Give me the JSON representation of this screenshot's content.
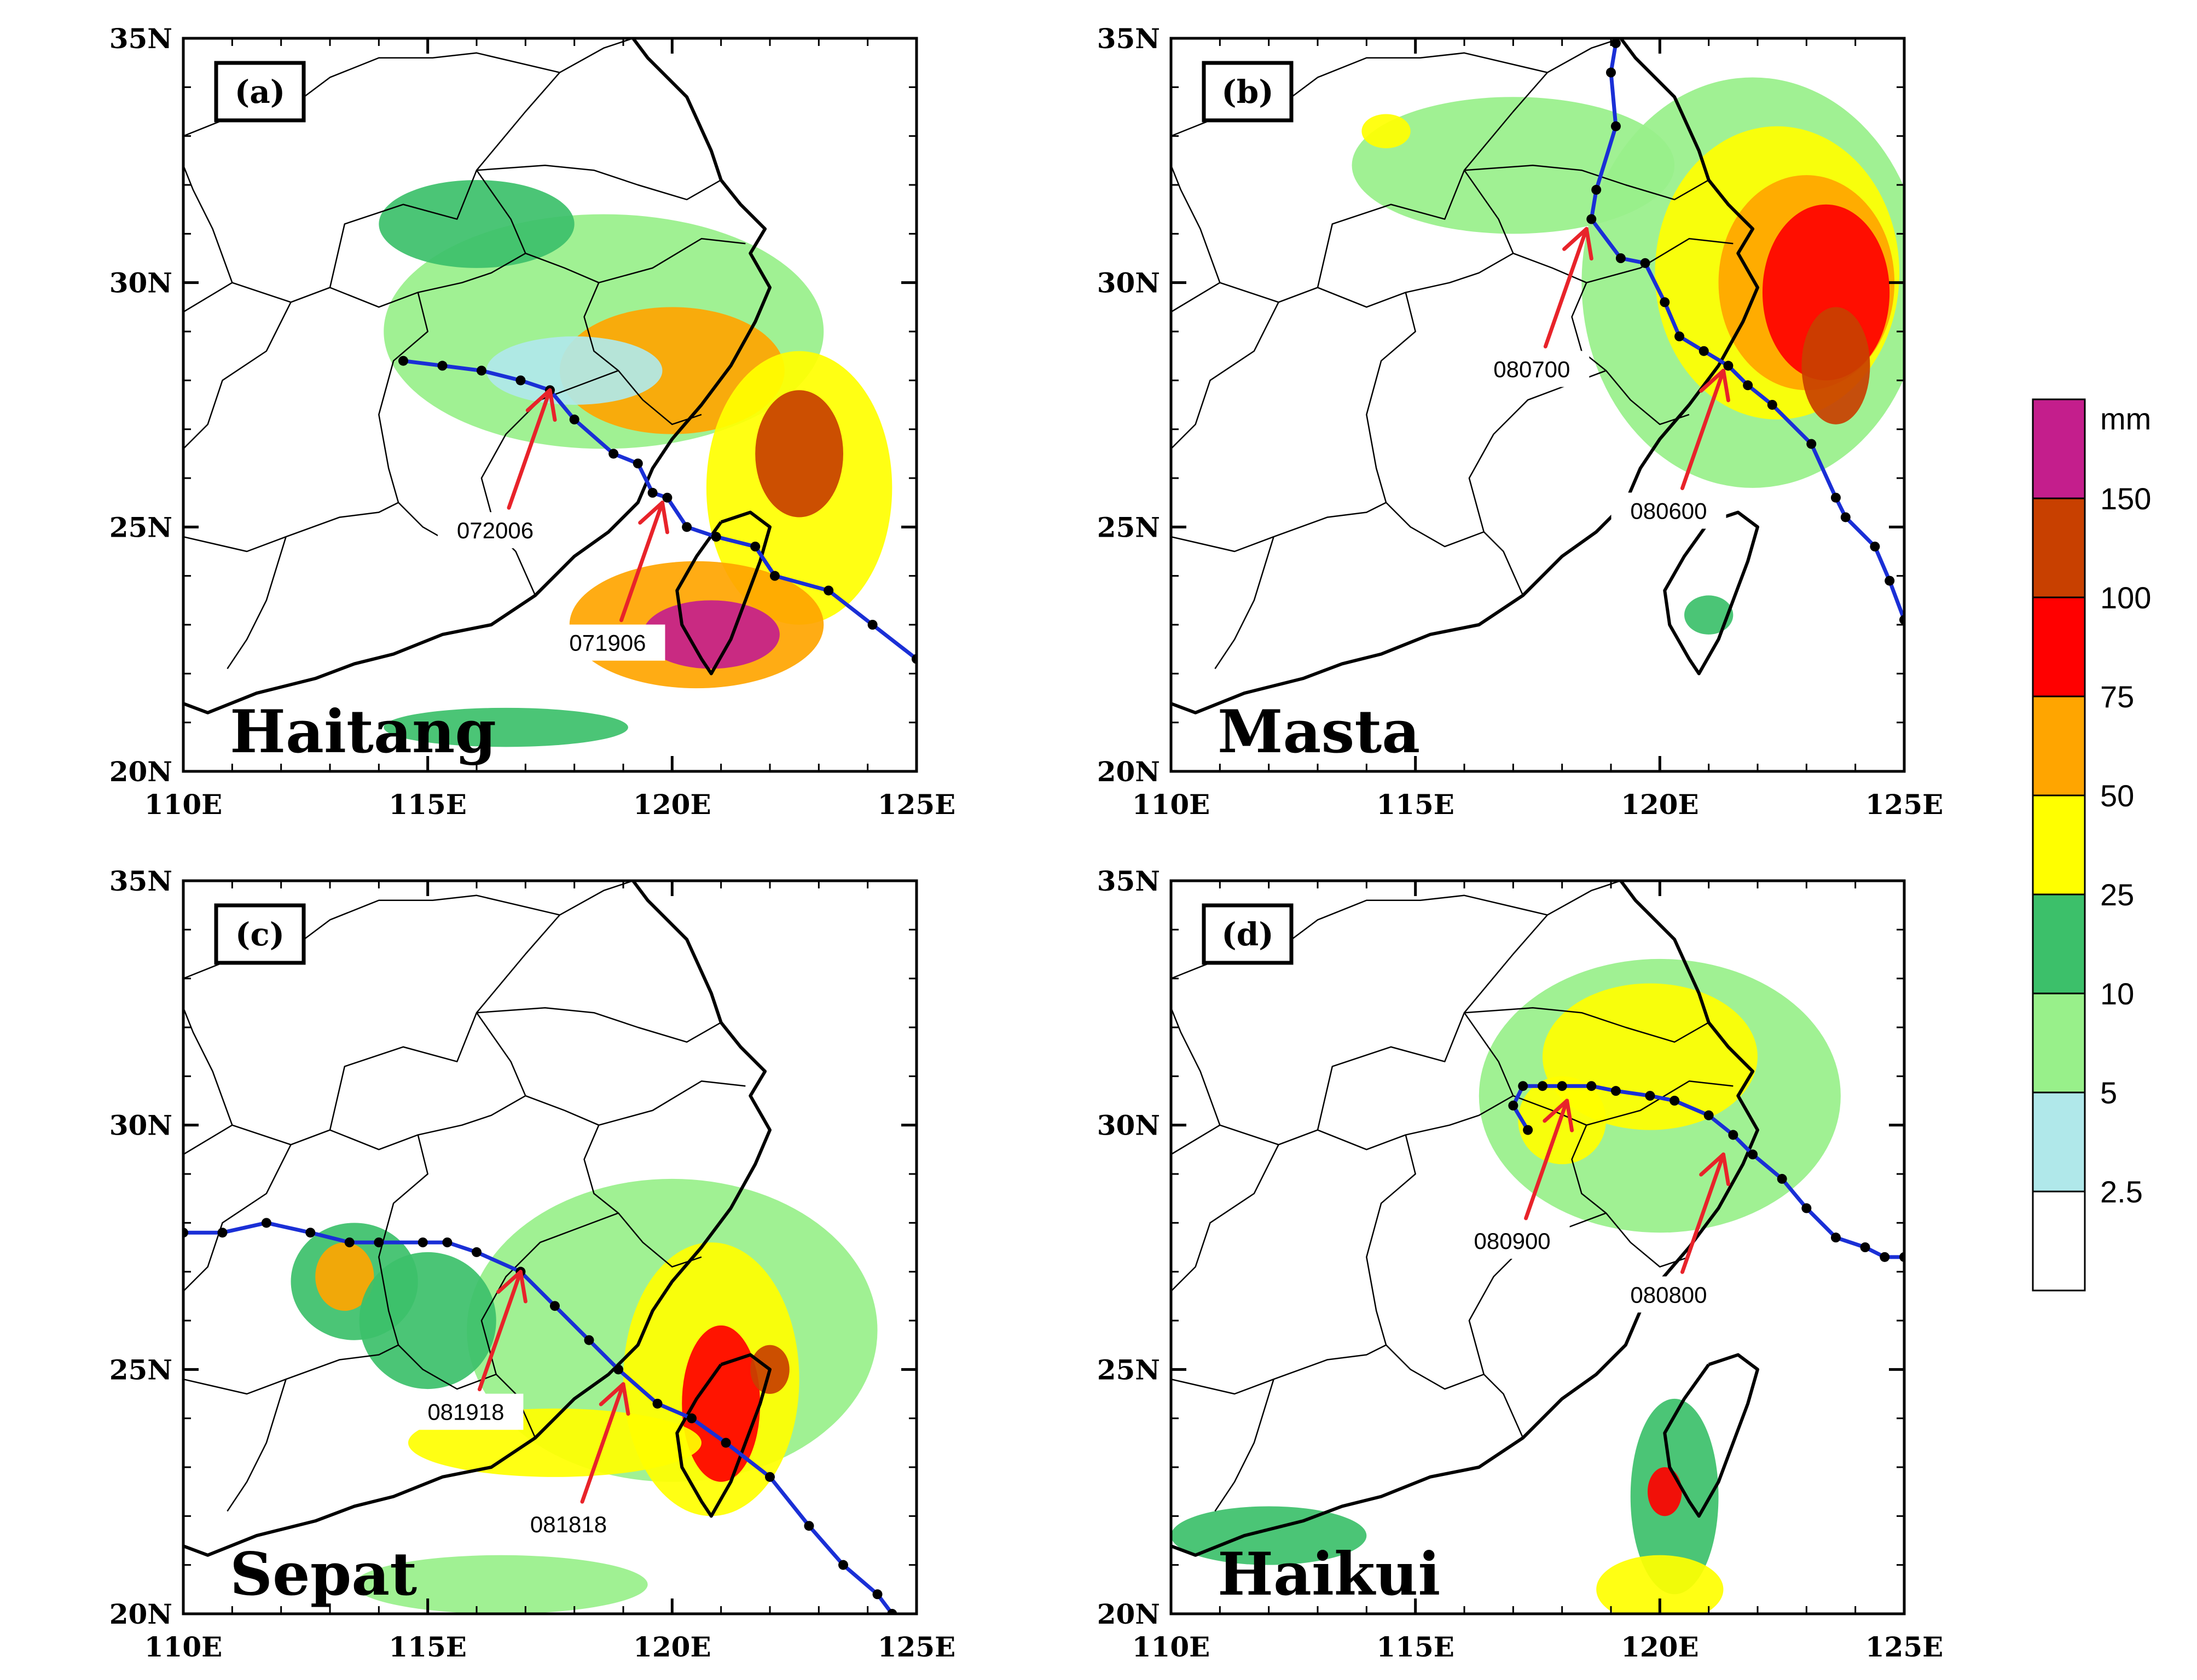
{
  "figure": {
    "x_axis": {
      "ticks": [
        "110E",
        "115E",
        "120E",
        "125E"
      ],
      "range_deg": [
        110,
        125
      ]
    },
    "y_axis": {
      "ticks": [
        "20N",
        "25N",
        "30N",
        "35N"
      ],
      "range_deg": [
        20,
        35
      ]
    }
  },
  "panels": [
    {
      "tag": "(a)",
      "storm": "Haitang",
      "track": [
        [
          114.5,
          28.4
        ],
        [
          115.3,
          28.3
        ],
        [
          116.1,
          28.2
        ],
        [
          116.9,
          28.0
        ],
        [
          117.5,
          27.8
        ],
        [
          118.0,
          27.2
        ],
        [
          118.8,
          26.5
        ],
        [
          119.3,
          26.3
        ],
        [
          119.6,
          25.7
        ],
        [
          119.9,
          25.6
        ],
        [
          120.3,
          25.0
        ],
        [
          120.9,
          24.8
        ],
        [
          121.7,
          24.6
        ],
        [
          122.1,
          24.0
        ],
        [
          123.2,
          23.7
        ],
        [
          124.1,
          23.0
        ],
        [
          125.0,
          22.3
        ]
      ],
      "labels": [
        {
          "text": "072006",
          "lon": 117.5,
          "lat": 27.8
        },
        {
          "text": "071906",
          "lon": 119.8,
          "lat": 25.5
        }
      ],
      "rain": [
        {
          "lon": 118.6,
          "lat": 29.0,
          "rx": 4.5,
          "ry": 2.4,
          "level": 2
        },
        {
          "lon": 116.0,
          "lat": 31.2,
          "rx": 2.0,
          "ry": 0.9,
          "level": 3
        },
        {
          "lon": 120.0,
          "lat": 28.2,
          "rx": 2.3,
          "ry": 1.3,
          "level": 5
        },
        {
          "lon": 122.6,
          "lat": 25.8,
          "rx": 1.9,
          "ry": 2.8,
          "level": 4
        },
        {
          "lon": 122.6,
          "lat": 26.5,
          "rx": 0.9,
          "ry": 1.3,
          "level": 7
        },
        {
          "lon": 120.5,
          "lat": 23.0,
          "rx": 2.6,
          "ry": 1.3,
          "level": 5
        },
        {
          "lon": 120.8,
          "lat": 22.8,
          "rx": 1.4,
          "ry": 0.7,
          "level": 8
        },
        {
          "lon": 116.6,
          "lat": 20.9,
          "rx": 2.5,
          "ry": 0.4,
          "level": 3
        },
        {
          "lon": 118.0,
          "lat": 28.2,
          "rx": 1.8,
          "ry": 0.7,
          "level": 1
        }
      ]
    },
    {
      "tag": "(b)",
      "storm": "Masta",
      "track": [
        [
          119.1,
          34.9
        ],
        [
          119.0,
          34.3
        ],
        [
          119.1,
          33.2
        ],
        [
          118.7,
          31.9
        ],
        [
          118.6,
          31.3
        ],
        [
          119.2,
          30.5
        ],
        [
          119.7,
          30.4
        ],
        [
          120.1,
          29.6
        ],
        [
          120.4,
          28.9
        ],
        [
          120.9,
          28.6
        ],
        [
          121.4,
          28.3
        ],
        [
          121.8,
          27.9
        ],
        [
          122.3,
          27.5
        ],
        [
          123.1,
          26.7
        ],
        [
          123.6,
          25.6
        ],
        [
          123.8,
          25.2
        ],
        [
          124.4,
          24.6
        ],
        [
          124.7,
          23.9
        ],
        [
          125.0,
          23.1
        ]
      ],
      "labels": [
        {
          "text": "080700",
          "lon": 118.5,
          "lat": 31.1
        },
        {
          "text": "080600",
          "lon": 121.3,
          "lat": 28.2
        }
      ],
      "rain": [
        {
          "lon": 121.9,
          "lat": 30.0,
          "rx": 3.5,
          "ry": 4.2,
          "level": 2
        },
        {
          "lon": 117.0,
          "lat": 32.4,
          "rx": 3.3,
          "ry": 1.4,
          "level": 2
        },
        {
          "lon": 122.4,
          "lat": 30.2,
          "rx": 2.5,
          "ry": 3.0,
          "level": 4
        },
        {
          "lon": 123.0,
          "lat": 30.0,
          "rx": 1.8,
          "ry": 2.2,
          "level": 5
        },
        {
          "lon": 123.4,
          "lat": 29.8,
          "rx": 1.3,
          "ry": 1.8,
          "level": 6
        },
        {
          "lon": 123.6,
          "lat": 28.3,
          "rx": 0.7,
          "ry": 1.2,
          "level": 7
        },
        {
          "lon": 114.4,
          "lat": 33.1,
          "rx": 0.5,
          "ry": 0.35,
          "level": 4
        },
        {
          "lon": 121.0,
          "lat": 23.2,
          "rx": 0.5,
          "ry": 0.4,
          "level": 3
        }
      ]
    },
    {
      "tag": "(c)",
      "storm": "Sepat",
      "track": [
        [
          110.0,
          27.8
        ],
        [
          110.8,
          27.8
        ],
        [
          111.7,
          28.0
        ],
        [
          112.6,
          27.8
        ],
        [
          113.4,
          27.6
        ],
        [
          114.0,
          27.6
        ],
        [
          114.9,
          27.6
        ],
        [
          115.4,
          27.6
        ],
        [
          116.0,
          27.4
        ],
        [
          116.9,
          27.0
        ],
        [
          117.6,
          26.3
        ],
        [
          118.3,
          25.6
        ],
        [
          118.9,
          25.0
        ],
        [
          119.7,
          24.3
        ],
        [
          120.4,
          24.0
        ],
        [
          121.1,
          23.5
        ],
        [
          122.0,
          22.8
        ],
        [
          122.8,
          21.8
        ],
        [
          123.5,
          21.0
        ],
        [
          124.2,
          20.4
        ],
        [
          124.5,
          20.0
        ]
      ],
      "labels": [
        {
          "text": "081918",
          "lon": 116.9,
          "lat": 27.0
        },
        {
          "text": "081818",
          "lon": 119.0,
          "lat": 24.7
        }
      ],
      "rain": [
        {
          "lon": 120.0,
          "lat": 25.8,
          "rx": 4.2,
          "ry": 3.1,
          "level": 2
        },
        {
          "lon": 113.5,
          "lat": 26.8,
          "rx": 1.3,
          "ry": 1.2,
          "level": 3
        },
        {
          "lon": 113.3,
          "lat": 26.9,
          "rx": 0.6,
          "ry": 0.7,
          "level": 5
        },
        {
          "lon": 115.0,
          "lat": 26.0,
          "rx": 1.4,
          "ry": 1.4,
          "level": 3
        },
        {
          "lon": 120.8,
          "lat": 24.8,
          "rx": 1.8,
          "ry": 2.8,
          "level": 4
        },
        {
          "lon": 121.0,
          "lat": 24.3,
          "rx": 0.8,
          "ry": 1.6,
          "level": 6
        },
        {
          "lon": 117.6,
          "lat": 23.5,
          "rx": 3.0,
          "ry": 0.7,
          "level": 4
        },
        {
          "lon": 122.0,
          "lat": 25.0,
          "rx": 0.4,
          "ry": 0.5,
          "level": 7
        },
        {
          "lon": 116.5,
          "lat": 20.6,
          "rx": 3.0,
          "ry": 0.6,
          "level": 2
        }
      ]
    },
    {
      "tag": "(d)",
      "storm": "Haikui",
      "track": [
        [
          117.3,
          29.9
        ],
        [
          117.0,
          30.4
        ],
        [
          117.2,
          30.8
        ],
        [
          117.6,
          30.8
        ],
        [
          118.0,
          30.8
        ],
        [
          118.6,
          30.8
        ],
        [
          119.1,
          30.7
        ],
        [
          119.8,
          30.6
        ],
        [
          120.3,
          30.5
        ],
        [
          121.0,
          30.2
        ],
        [
          121.5,
          29.8
        ],
        [
          121.9,
          29.4
        ],
        [
          122.5,
          28.9
        ],
        [
          123.0,
          28.3
        ],
        [
          123.6,
          27.7
        ],
        [
          124.2,
          27.5
        ],
        [
          124.6,
          27.3
        ],
        [
          125.0,
          27.3
        ]
      ],
      "labels": [
        {
          "text": "080900",
          "lon": 118.1,
          "lat": 30.5
        },
        {
          "text": "080800",
          "lon": 121.3,
          "lat": 29.4
        }
      ],
      "rain": [
        {
          "lon": 120.0,
          "lat": 30.6,
          "rx": 3.7,
          "ry": 2.8,
          "level": 2
        },
        {
          "lon": 119.8,
          "lat": 31.4,
          "rx": 2.2,
          "ry": 1.5,
          "level": 4
        },
        {
          "lon": 118.0,
          "lat": 30.1,
          "rx": 0.9,
          "ry": 0.9,
          "level": 4
        },
        {
          "lon": 120.3,
          "lat": 22.4,
          "rx": 0.9,
          "ry": 2.0,
          "level": 3
        },
        {
          "lon": 120.1,
          "lat": 22.5,
          "rx": 0.35,
          "ry": 0.5,
          "level": 6
        },
        {
          "lon": 120.0,
          "lat": 20.5,
          "rx": 1.3,
          "ry": 0.7,
          "level": 4
        },
        {
          "lon": 112.0,
          "lat": 21.6,
          "rx": 2.0,
          "ry": 0.6,
          "level": 3
        }
      ]
    }
  ],
  "colorbar": {
    "unit": "mm",
    "labels": [
      "150",
      "100",
      "75",
      "50",
      "25",
      "10",
      "5",
      "2.5"
    ],
    "colors": [
      "#ffffff",
      "#b0e8ea",
      "#98f08a",
      "#3cc06a",
      "#ffff00",
      "#ffa500",
      "#ff0000",
      "#c84000",
      "#c41e8c"
    ]
  },
  "geography": {
    "coast": [
      [
        108.2,
        21.6
      ],
      [
        109.7,
        21.5
      ],
      [
        110.5,
        21.2
      ],
      [
        111.5,
        21.6
      ],
      [
        112.7,
        21.9
      ],
      [
        113.5,
        22.2
      ],
      [
        114.3,
        22.4
      ],
      [
        115.3,
        22.8
      ],
      [
        116.3,
        23.0
      ],
      [
        117.2,
        23.6
      ],
      [
        118.0,
        24.4
      ],
      [
        118.7,
        24.9
      ],
      [
        119.3,
        25.5
      ],
      [
        119.6,
        26.2
      ],
      [
        120.0,
        26.8
      ],
      [
        120.6,
        27.5
      ],
      [
        121.2,
        28.3
      ],
      [
        121.7,
        29.2
      ],
      [
        122.0,
        29.9
      ],
      [
        121.6,
        30.6
      ],
      [
        121.9,
        31.1
      ],
      [
        121.4,
        31.6
      ],
      [
        121.0,
        32.1
      ],
      [
        120.8,
        32.7
      ],
      [
        120.3,
        33.8
      ],
      [
        119.5,
        34.6
      ],
      [
        119.2,
        35.0
      ]
    ],
    "taiwan": [
      [
        121.0,
        25.1
      ],
      [
        121.6,
        25.3
      ],
      [
        122.0,
        25.0
      ],
      [
        121.8,
        24.3
      ],
      [
        121.5,
        23.5
      ],
      [
        121.2,
        22.7
      ],
      [
        120.8,
        22.0
      ],
      [
        120.6,
        22.3
      ],
      [
        120.2,
        23.0
      ],
      [
        120.1,
        23.7
      ],
      [
        120.5,
        24.4
      ],
      [
        121.0,
        25.1
      ]
    ],
    "borders": [
      [
        [
          110.0,
          29.4
        ],
        [
          111.0,
          30.0
        ],
        [
          112.2,
          29.6
        ],
        [
          113.0,
          29.9
        ],
        [
          114.0,
          29.5
        ],
        [
          114.8,
          29.8
        ],
        [
          115.7,
          30.0
        ],
        [
          116.3,
          30.2
        ],
        [
          117.0,
          30.6
        ],
        [
          117.8,
          30.3
        ],
        [
          118.5,
          30.0
        ],
        [
          119.6,
          30.3
        ],
        [
          120.6,
          30.9
        ],
        [
          121.5,
          30.8
        ]
      ],
      [
        [
          114.8,
          29.8
        ],
        [
          115.0,
          29.0
        ],
        [
          114.3,
          28.4
        ],
        [
          114.0,
          27.3
        ],
        [
          114.2,
          26.2
        ],
        [
          114.4,
          25.5
        ],
        [
          114.9,
          25.0
        ],
        [
          115.6,
          24.6
        ],
        [
          116.4,
          24.9
        ],
        [
          116.8,
          24.5
        ],
        [
          117.2,
          23.6
        ]
      ],
      [
        [
          118.5,
          30.0
        ],
        [
          118.2,
          29.3
        ],
        [
          118.4,
          28.6
        ],
        [
          118.9,
          28.2
        ],
        [
          119.4,
          27.6
        ],
        [
          120.0,
          27.1
        ],
        [
          120.6,
          27.3
        ]
      ],
      [
        [
          118.9,
          28.2
        ],
        [
          118.1,
          27.9
        ],
        [
          117.3,
          27.6
        ],
        [
          116.6,
          26.9
        ],
        [
          116.1,
          26.0
        ],
        [
          116.4,
          24.9
        ]
      ],
      [
        [
          112.2,
          29.6
        ],
        [
          111.7,
          28.6
        ],
        [
          110.8,
          28.0
        ],
        [
          110.5,
          27.1
        ],
        [
          110.0,
          26.6
        ]
      ],
      [
        [
          113.0,
          29.9
        ],
        [
          113.3,
          31.2
        ],
        [
          114.5,
          31.6
        ],
        [
          115.6,
          31.3
        ],
        [
          116.0,
          32.3
        ],
        [
          117.0,
          33.5
        ],
        [
          117.7,
          34.3
        ],
        [
          118.6,
          34.8
        ],
        [
          119.2,
          35.0
        ]
      ],
      [
        [
          116.0,
          32.3
        ],
        [
          117.4,
          32.4
        ],
        [
          118.4,
          32.3
        ],
        [
          119.3,
          32.0
        ],
        [
          120.3,
          31.7
        ],
        [
          121.0,
          32.1
        ]
      ],
      [
        [
          110.0,
          24.8
        ],
        [
          111.3,
          24.5
        ],
        [
          112.1,
          24.8
        ],
        [
          113.2,
          25.2
        ],
        [
          114.0,
          25.3
        ],
        [
          114.4,
          25.5
        ]
      ],
      [
        [
          110.0,
          33.0
        ],
        [
          111.0,
          33.4
        ],
        [
          112.2,
          33.6
        ],
        [
          113.0,
          34.2
        ],
        [
          114.0,
          34.6
        ],
        [
          115.1,
          34.6
        ],
        [
          116.0,
          34.7
        ],
        [
          117.7,
          34.3
        ]
      ],
      [
        [
          111.0,
          30.0
        ],
        [
          110.6,
          31.1
        ],
        [
          110.2,
          31.9
        ],
        [
          110.0,
          32.4
        ]
      ],
      [
        [
          112.1,
          24.8
        ],
        [
          111.7,
          23.5
        ],
        [
          111.3,
          22.7
        ],
        [
          110.9,
          22.1
        ]
      ],
      [
        [
          117.0,
          30.6
        ],
        [
          116.7,
          31.3
        ],
        [
          116.0,
          32.3
        ]
      ]
    ]
  }
}
